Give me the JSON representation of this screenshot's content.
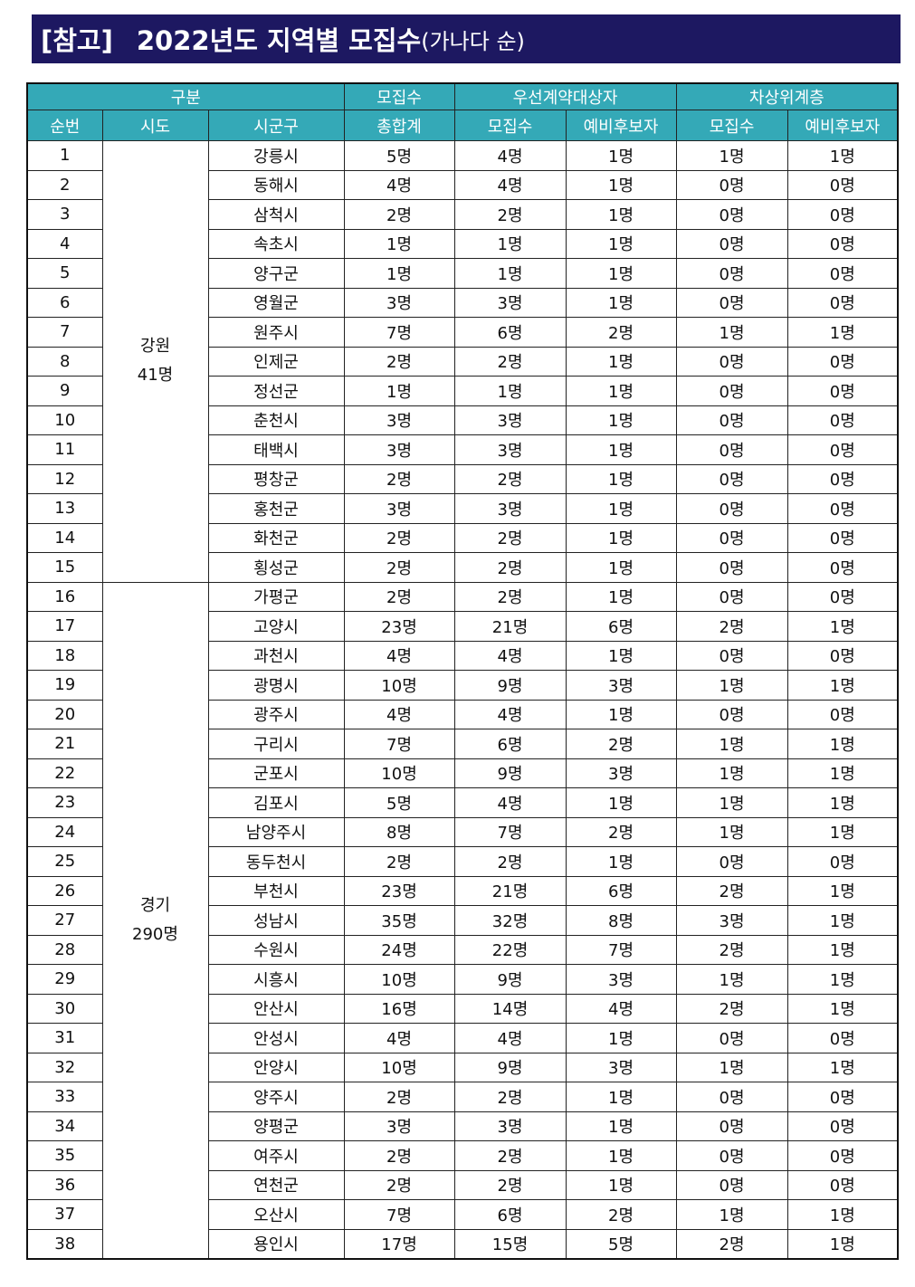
{
  "title": {
    "main": "[참고]",
    "year": "2022년도 지역별 모집수",
    "sub": "(가나다 순)"
  },
  "colors": {
    "title_bg": "#1d1861",
    "header_bg": "#34a9b7"
  },
  "table": {
    "group_headers": [
      "구분",
      "모집수",
      "우선계약대상자",
      "차상위계층"
    ],
    "columns": [
      "순번",
      "시도",
      "시군구",
      "총합계",
      "모집수",
      "예비후보자",
      "모집수",
      "예비후보자"
    ],
    "regions": [
      {
        "name": "강원",
        "total": "41명",
        "rows": [
          [
            "1",
            "강릉시",
            "5명",
            "4명",
            "1명",
            "1명",
            "1명"
          ],
          [
            "2",
            "동해시",
            "4명",
            "4명",
            "1명",
            "0명",
            "0명"
          ],
          [
            "3",
            "삼척시",
            "2명",
            "2명",
            "1명",
            "0명",
            "0명"
          ],
          [
            "4",
            "속초시",
            "1명",
            "1명",
            "1명",
            "0명",
            "0명"
          ],
          [
            "5",
            "양구군",
            "1명",
            "1명",
            "1명",
            "0명",
            "0명"
          ],
          [
            "6",
            "영월군",
            "3명",
            "3명",
            "1명",
            "0명",
            "0명"
          ],
          [
            "7",
            "원주시",
            "7명",
            "6명",
            "2명",
            "1명",
            "1명"
          ],
          [
            "8",
            "인제군",
            "2명",
            "2명",
            "1명",
            "0명",
            "0명"
          ],
          [
            "9",
            "정선군",
            "1명",
            "1명",
            "1명",
            "0명",
            "0명"
          ],
          [
            "10",
            "춘천시",
            "3명",
            "3명",
            "1명",
            "0명",
            "0명"
          ],
          [
            "11",
            "태백시",
            "3명",
            "3명",
            "1명",
            "0명",
            "0명"
          ],
          [
            "12",
            "평창군",
            "2명",
            "2명",
            "1명",
            "0명",
            "0명"
          ],
          [
            "13",
            "홍천군",
            "3명",
            "3명",
            "1명",
            "0명",
            "0명"
          ],
          [
            "14",
            "화천군",
            "2명",
            "2명",
            "1명",
            "0명",
            "0명"
          ],
          [
            "15",
            "횡성군",
            "2명",
            "2명",
            "1명",
            "0명",
            "0명"
          ]
        ]
      },
      {
        "name": "경기",
        "total": "290명",
        "rows": [
          [
            "16",
            "가평군",
            "2명",
            "2명",
            "1명",
            "0명",
            "0명"
          ],
          [
            "17",
            "고양시",
            "23명",
            "21명",
            "6명",
            "2명",
            "1명"
          ],
          [
            "18",
            "과천시",
            "4명",
            "4명",
            "1명",
            "0명",
            "0명"
          ],
          [
            "19",
            "광명시",
            "10명",
            "9명",
            "3명",
            "1명",
            "1명"
          ],
          [
            "20",
            "광주시",
            "4명",
            "4명",
            "1명",
            "0명",
            "0명"
          ],
          [
            "21",
            "구리시",
            "7명",
            "6명",
            "2명",
            "1명",
            "1명"
          ],
          [
            "22",
            "군포시",
            "10명",
            "9명",
            "3명",
            "1명",
            "1명"
          ],
          [
            "23",
            "김포시",
            "5명",
            "4명",
            "1명",
            "1명",
            "1명"
          ],
          [
            "24",
            "남양주시",
            "8명",
            "7명",
            "2명",
            "1명",
            "1명"
          ],
          [
            "25",
            "동두천시",
            "2명",
            "2명",
            "1명",
            "0명",
            "0명"
          ],
          [
            "26",
            "부천시",
            "23명",
            "21명",
            "6명",
            "2명",
            "1명"
          ],
          [
            "27",
            "성남시",
            "35명",
            "32명",
            "8명",
            "3명",
            "1명"
          ],
          [
            "28",
            "수원시",
            "24명",
            "22명",
            "7명",
            "2명",
            "1명"
          ],
          [
            "29",
            "시흥시",
            "10명",
            "9명",
            "3명",
            "1명",
            "1명"
          ],
          [
            "30",
            "안산시",
            "16명",
            "14명",
            "4명",
            "2명",
            "1명"
          ],
          [
            "31",
            "안성시",
            "4명",
            "4명",
            "1명",
            "0명",
            "0명"
          ],
          [
            "32",
            "안양시",
            "10명",
            "9명",
            "3명",
            "1명",
            "1명"
          ],
          [
            "33",
            "양주시",
            "2명",
            "2명",
            "1명",
            "0명",
            "0명"
          ],
          [
            "34",
            "양평군",
            "3명",
            "3명",
            "1명",
            "0명",
            "0명"
          ],
          [
            "35",
            "여주시",
            "2명",
            "2명",
            "1명",
            "0명",
            "0명"
          ],
          [
            "36",
            "연천군",
            "2명",
            "2명",
            "1명",
            "0명",
            "0명"
          ],
          [
            "37",
            "오산시",
            "7명",
            "6명",
            "2명",
            "1명",
            "1명"
          ],
          [
            "38",
            "용인시",
            "17명",
            "15명",
            "5명",
            "2명",
            "1명"
          ]
        ]
      }
    ]
  }
}
